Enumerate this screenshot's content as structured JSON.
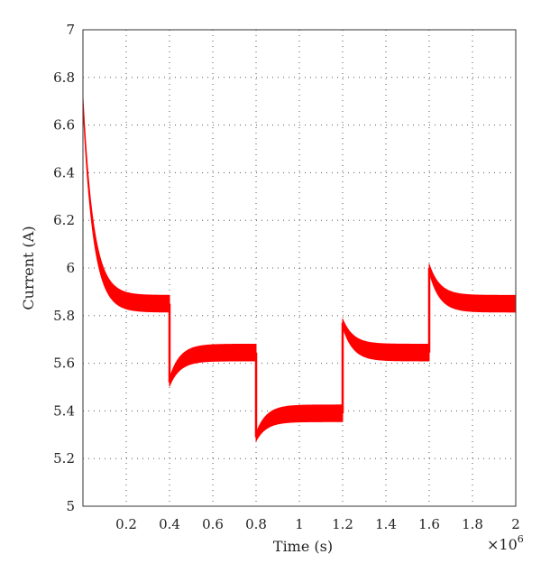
{
  "chart_data": {
    "type": "line",
    "xlabel": "Time (s)",
    "ylabel": "Current (A)",
    "x_multiplier": "×10",
    "x_multiplier_exp": "6",
    "xlim": [
      0,
      2
    ],
    "ylim": [
      5,
      7
    ],
    "x_ticks": [
      0.2,
      0.4,
      0.6,
      0.8,
      1,
      1.2,
      1.4,
      1.6,
      1.8,
      2
    ],
    "y_ticks": [
      5,
      5.2,
      5.4,
      5.6,
      5.8,
      6,
      6.2,
      6.4,
      6.6,
      6.8,
      7
    ],
    "grid": true,
    "series": [
      {
        "color": "#ff0000",
        "segments": [
          {
            "start": 0.0,
            "end": 0.4,
            "initial": 6.7,
            "steady": 5.85,
            "ripple": 0.07
          },
          {
            "start": 0.4,
            "end": 0.8,
            "initial": 5.52,
            "steady": 5.645,
            "ripple": 0.07
          },
          {
            "start": 0.8,
            "end": 1.2,
            "initial": 5.29,
            "steady": 5.39,
            "ripple": 0.07
          },
          {
            "start": 1.2,
            "end": 1.6,
            "initial": 5.77,
            "steady": 5.645,
            "ripple": 0.07
          },
          {
            "start": 1.6,
            "end": 2.0,
            "initial": 6.0,
            "steady": 5.85,
            "ripple": 0.07
          }
        ]
      }
    ]
  }
}
